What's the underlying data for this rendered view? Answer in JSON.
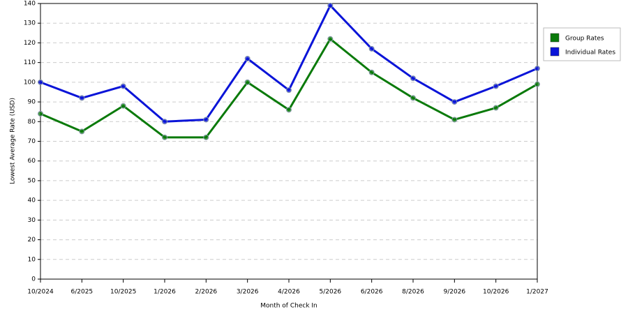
{
  "chart_data": {
    "type": "line",
    "x_label": "Month of Check In",
    "y_label": "Lowest Average Rate (USD)",
    "categories": [
      "10/2024",
      "6/2025",
      "10/2025",
      "1/2026",
      "2/2026",
      "3/2026",
      "4/2026",
      "5/2026",
      "6/2026",
      "8/2026",
      "9/2026",
      "10/2026",
      "1/2027"
    ],
    "series": [
      {
        "name": "Group Rates",
        "color": "#0a7a0a",
        "values": [
          84,
          75,
          88,
          72,
          72,
          100,
          86,
          122,
          105,
          92,
          81,
          87,
          99
        ]
      },
      {
        "name": "Individual Rates",
        "color": "#0a14d8",
        "values": [
          100,
          92,
          98,
          80,
          81,
          112,
          96,
          139,
          117,
          102,
          90,
          98,
          107
        ]
      }
    ],
    "ylim": [
      0,
      140
    ],
    "yticks": [
      0,
      10,
      20,
      30,
      40,
      50,
      60,
      70,
      80,
      90,
      100,
      110,
      120,
      130,
      140
    ],
    "grid": true,
    "legend": "right"
  }
}
